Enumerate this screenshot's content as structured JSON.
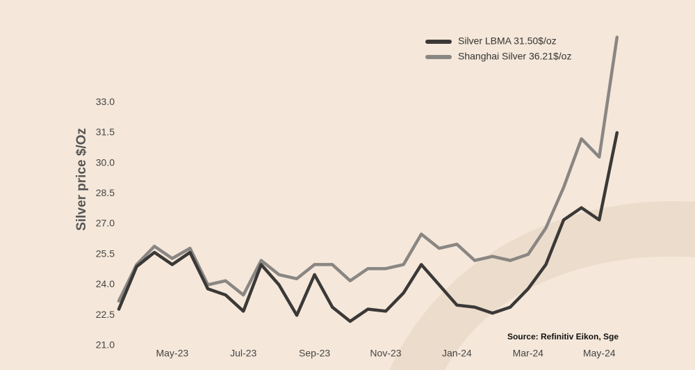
{
  "chart_data": {
    "type": "line",
    "y_label": "Silver price $/Oz",
    "annotation": "Source: Refinitiv Eikon, Sge",
    "categories": [
      null,
      null,
      null,
      "May-23",
      null,
      null,
      null,
      "Jul-23",
      null,
      null,
      null,
      "Sep-23",
      null,
      null,
      null,
      "Nov-23",
      null,
      null,
      null,
      "Jan-24",
      null,
      null,
      null,
      "Mar-24",
      null,
      null,
      null,
      "May-24",
      null
    ],
    "series": [
      {
        "name": "Silver LBMA 31.50$/oz",
        "color": "#3b3937",
        "values": [
          22.8,
          24.9,
          25.6,
          25.0,
          25.6,
          23.8,
          23.5,
          22.7,
          25.0,
          24.0,
          22.5,
          24.5,
          22.9,
          22.2,
          22.8,
          22.7,
          23.6,
          25.0,
          24.0,
          23.0,
          22.9,
          22.6,
          22.9,
          23.8,
          25.0,
          27.2,
          27.8,
          27.2,
          31.5
        ]
      },
      {
        "name": "Shanghai Silver 36.21$/oz",
        "color": "#8a8683",
        "values": [
          23.2,
          25.0,
          25.9,
          25.3,
          25.8,
          24.0,
          24.2,
          23.5,
          25.2,
          24.5,
          24.3,
          25.0,
          25.0,
          24.2,
          24.8,
          24.8,
          25.0,
          26.5,
          25.8,
          26.0,
          25.2,
          25.4,
          25.2,
          25.5,
          26.8,
          28.8,
          31.2,
          30.3,
          36.21
        ]
      }
    ],
    "ylim": [
      21,
      36.5
    ],
    "yticks": [
      {
        "value": 21,
        "label": "21.0"
      },
      22.5,
      {
        "value": 24,
        "label": "24.0"
      },
      25.5,
      {
        "value": 27,
        "label": "27.0"
      },
      28.5,
      {
        "value": 30,
        "label": "30.0"
      },
      31.5,
      {
        "value": 33,
        "label": "33.0"
      }
    ],
    "grid": false,
    "legend": "upper right"
  }
}
